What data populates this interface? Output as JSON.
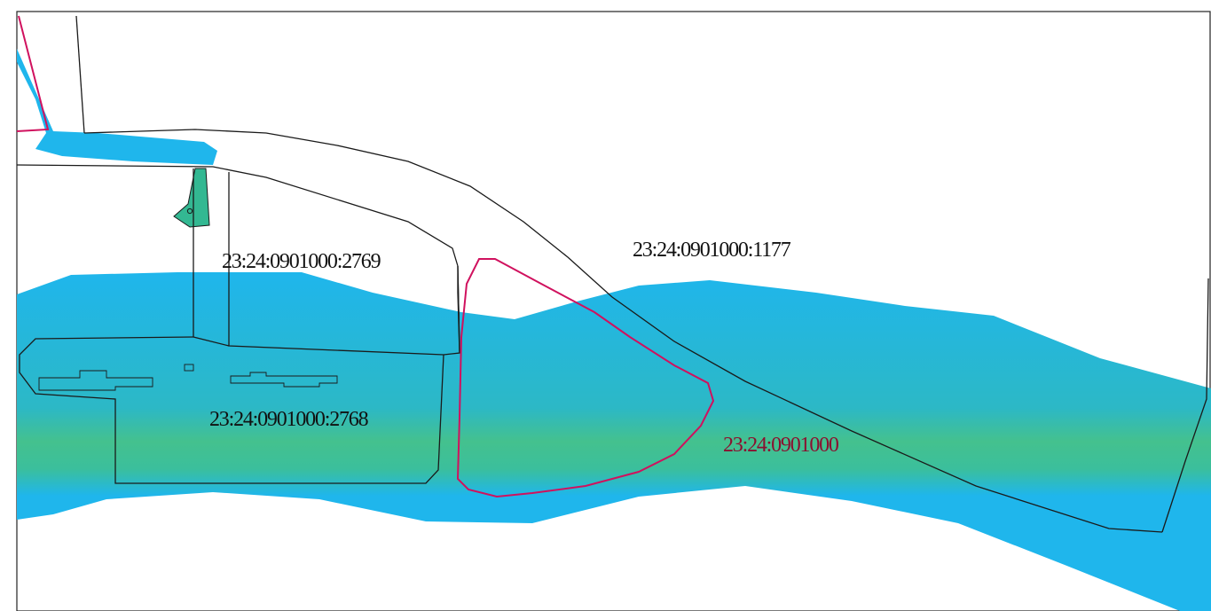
{
  "map": {
    "parcels": [
      {
        "id": "parcel-2769",
        "label": "23:24:0901000:2769"
      },
      {
        "id": "parcel-2768",
        "label": "23:24:0901000:2768"
      },
      {
        "id": "parcel-1177",
        "label": "23:24:0901000:1177"
      },
      {
        "id": "block-0901000",
        "label": "23:24:0901000"
      }
    ],
    "colors": {
      "water": "#1fb6ec",
      "water_band": "#3ec08a",
      "parcel_boundary": "#1a1a1a",
      "block_boundary": "#d0115e",
      "block_label": "#8a1030",
      "label": "#111111",
      "frame": "#222222"
    }
  }
}
